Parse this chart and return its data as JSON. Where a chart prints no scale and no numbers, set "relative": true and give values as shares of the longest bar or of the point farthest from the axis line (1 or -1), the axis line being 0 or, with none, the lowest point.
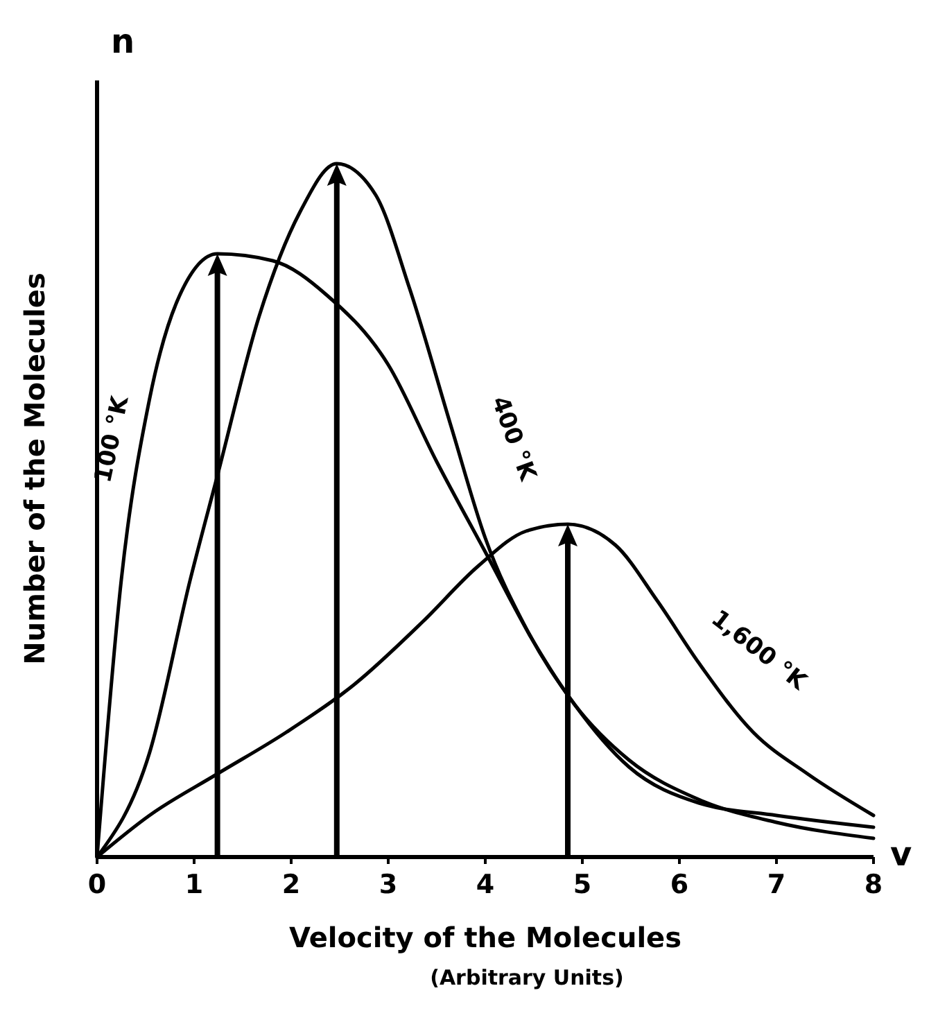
{
  "chart_data": {
    "type": "line",
    "xlabel": "Velocity of the Molecules",
    "ylabel": "Number of the Molecules",
    "annotations": [
      "(Arbitrary Units)",
      "n",
      "v"
    ],
    "relative": true,
    "xlim": [
      0,
      8
    ],
    "xticks": [
      0,
      1,
      2,
      3,
      4,
      5,
      6,
      7,
      8
    ],
    "legend": false,
    "grid": false,
    "marker": "none",
    "line_style": "solid",
    "series": [
      {
        "name": "100 °K",
        "color": "#000000",
        "x": [
          0,
          0.25,
          0.54,
          0.82,
          1.24,
          1.81,
          2.37,
          3,
          3.5,
          4,
          4.5,
          4.92,
          5.48,
          6.2,
          7,
          8
        ],
        "values": [
          0,
          0.4,
          0.66,
          0.8,
          0.87,
          0.86,
          0.81,
          0.71,
          0.57,
          0.44,
          0.31,
          0.22,
          0.14,
          0.083,
          0.05,
          0.027
        ]
      },
      {
        "name": "400 °K",
        "color": "#000000",
        "x": [
          0,
          0.54,
          0.96,
          1.24,
          1.67,
          2.09,
          2.47,
          2.87,
          3.22,
          3.65,
          4,
          4.42,
          4.92,
          5.48,
          6.2,
          7,
          8
        ],
        "values": [
          0,
          0.15,
          0.4,
          0.55,
          0.78,
          0.93,
          1,
          0.955,
          0.82,
          0.62,
          0.46,
          0.33,
          0.22,
          0.13,
          0.078,
          0.06,
          0.043
        ]
      },
      {
        "name": "1,600 °K",
        "color": "#000000",
        "x": [
          0,
          0.54,
          1.24,
          1.95,
          2.66,
          3.36,
          3.93,
          4.42,
          4.85,
          5.34,
          5.77,
          6.2,
          6.76,
          7.32,
          8
        ],
        "values": [
          0,
          0.06,
          0.12,
          0.18,
          0.25,
          0.34,
          0.42,
          0.47,
          0.48,
          0.45,
          0.37,
          0.28,
          0.18,
          0.12,
          0.06
        ]
      }
    ]
  }
}
